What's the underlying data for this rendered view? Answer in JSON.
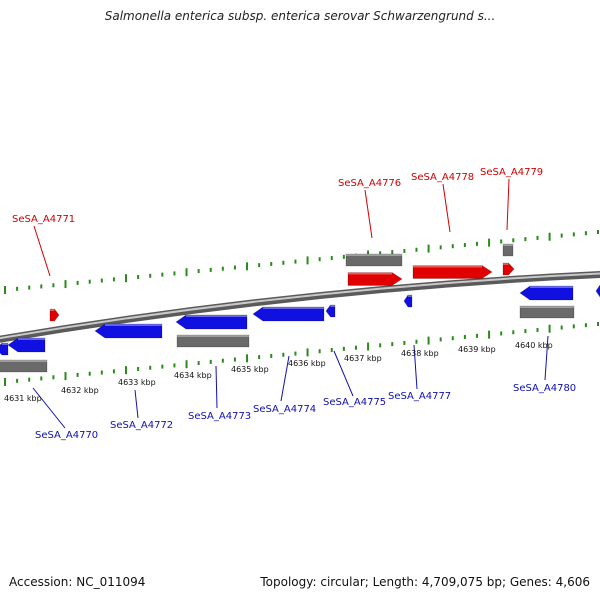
{
  "title": "Salmonella enterica subsp. enterica serovar Schwarzengrund s...",
  "footer": {
    "accession": "Accession: NC_011094",
    "topology": "Topology: circular; Length: 4,709,075 bp; Genes: 4,606"
  },
  "colors": {
    "forward_gene": "#e00000",
    "reverse_gene": "#1010e0",
    "rna_gene": "#6a6a6a",
    "backbone": "#8a8a8a",
    "ticks": "#2a8a1a",
    "label_top": "#d20000",
    "label_bottom": "#1010b0"
  },
  "scale_labels": [
    "4631 kbp",
    "4632 kbp",
    "4633 kbp",
    "4634 kbp",
    "4635 kbp",
    "4636 kbp",
    "4637 kbp",
    "4638 kbp",
    "4639 kbp",
    "4640 kbp"
  ],
  "top_labels": [
    "SeSA_A4771",
    "SeSA_A4776",
    "SeSA_A4778",
    "SeSA_A4779"
  ],
  "bottom_labels": [
    "SeSA_A4770",
    "SeSA_A4772",
    "SeSA_A4773",
    "SeSA_A4774",
    "SeSA_A4775",
    "SeSA_A4777",
    "SeSA_A4780"
  ]
}
